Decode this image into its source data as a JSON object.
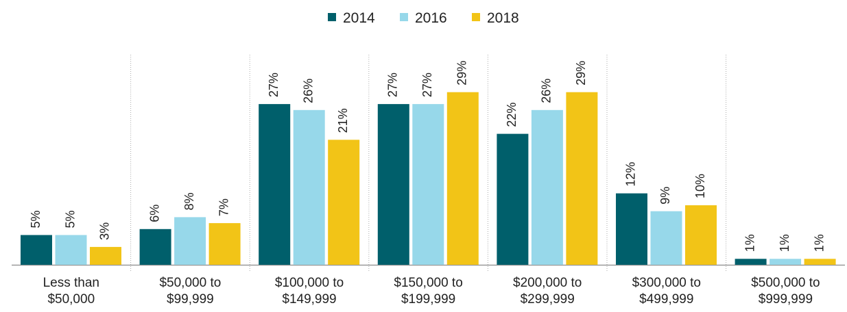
{
  "chart_data": {
    "type": "bar",
    "categories": [
      "Less than $50,000",
      "$50,000 to $99,999",
      "$100,000 to $149,999",
      "$150,000 to $199,999",
      "$200,000 to $299,999",
      "$300,000 to $499,999",
      "$500,000 to $999,999"
    ],
    "series": [
      {
        "name": "2014",
        "color": "#005f6b",
        "values": [
          5,
          6,
          27,
          27,
          22,
          12,
          1
        ],
        "value_labels": [
          "5%",
          "6%",
          "27%",
          "27%",
          "22%",
          "12%",
          "1%"
        ]
      },
      {
        "name": "2016",
        "color": "#97d8ea",
        "values": [
          5,
          8,
          26,
          27,
          26,
          9,
          1
        ],
        "value_labels": [
          "5%",
          "8%",
          "26%",
          "27%",
          "26%",
          "9%",
          "1%"
        ]
      },
      {
        "name": "2018",
        "color": "#f2c417",
        "values": [
          3,
          7,
          21,
          29,
          29,
          10,
          1
        ],
        "value_labels": [
          "3%",
          "7%",
          "21%",
          "29%",
          "29%",
          "10%",
          "1%"
        ]
      }
    ],
    "legend": "top"
  }
}
